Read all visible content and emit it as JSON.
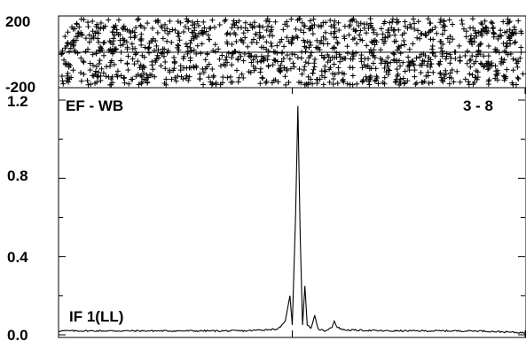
{
  "chart_data": [
    {
      "type": "scatter",
      "panel": "phase",
      "title": "",
      "xlabel": "",
      "ylabel": "",
      "ylim": [
        -200,
        200
      ],
      "yticks": [
        -200,
        200
      ],
      "ytick_labels": [
        "-200",
        "200"
      ],
      "series": [
        {
          "style": "plus-markers",
          "description_values": "random phase noise uniformly distributed between -200 and 200",
          "count": 1200
        }
      ],
      "grid": false
    },
    {
      "type": "line",
      "panel": "amplitude",
      "title": "",
      "xlabel": "",
      "ylabel": "",
      "ylim": [
        0.0,
        1.2
      ],
      "yticks": [
        0.0,
        0.4,
        0.8,
        1.2
      ],
      "ytick_labels": [
        "0.0",
        "0.4",
        "0.8",
        "1.2"
      ],
      "xlim": [
        0,
        1
      ],
      "series": [
        {
          "points": [
            [
              0.0,
              0.02
            ],
            [
              0.1,
              0.02
            ],
            [
              0.2,
              0.02
            ],
            [
              0.3,
              0.02
            ],
            [
              0.4,
              0.02
            ],
            [
              0.47,
              0.03
            ],
            [
              0.485,
              0.07
            ],
            [
              0.495,
              0.2
            ],
            [
              0.5,
              0.05
            ],
            [
              0.507,
              0.6
            ],
            [
              0.512,
              1.17
            ],
            [
              0.517,
              0.5
            ],
            [
              0.522,
              0.05
            ],
            [
              0.527,
              0.25
            ],
            [
              0.532,
              0.05
            ],
            [
              0.54,
              0.03
            ],
            [
              0.548,
              0.1
            ],
            [
              0.555,
              0.03
            ],
            [
              0.57,
              0.02
            ],
            [
              0.585,
              0.04
            ],
            [
              0.59,
              0.07
            ],
            [
              0.595,
              0.04
            ],
            [
              0.61,
              0.025
            ],
            [
              0.7,
              0.02
            ],
            [
              0.8,
              0.02
            ],
            [
              0.9,
              0.02
            ],
            [
              1.0,
              0.01
            ]
          ]
        }
      ],
      "grid": false
    }
  ],
  "labels": {
    "baseline": "EF - WB",
    "scan": "3 - 8",
    "if_band": "IF 1(LL)"
  }
}
